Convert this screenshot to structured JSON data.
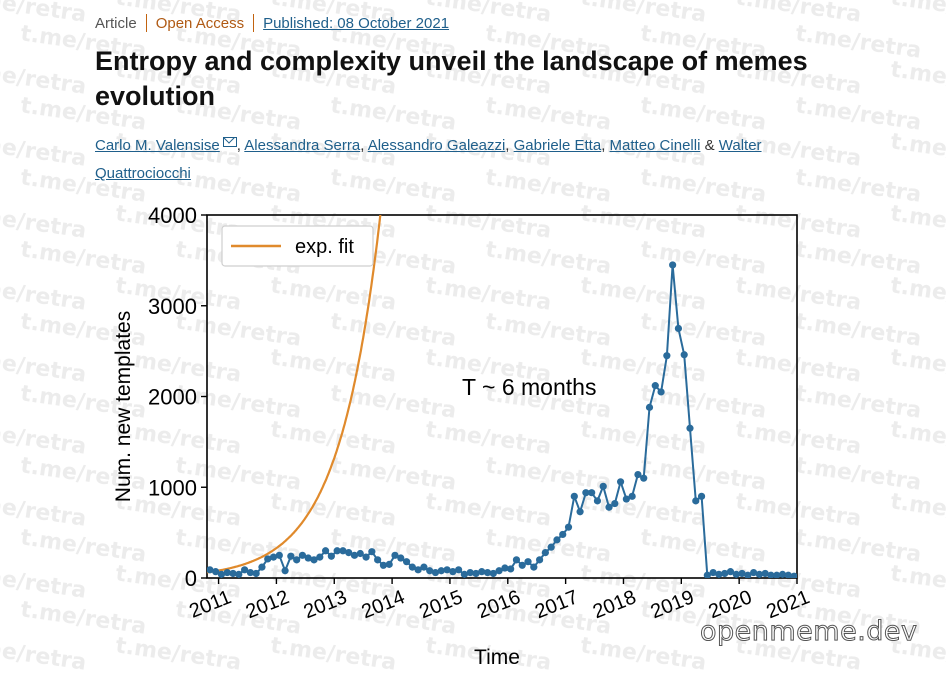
{
  "article": {
    "type": "Article",
    "access": "Open Access",
    "published": "Published: 08 October 2021",
    "title": "Entropy and complexity unveil the landscape of memes evolution",
    "authors": [
      {
        "name": "Carlo M. Valensise",
        "mail": true
      },
      {
        "name": "Alessandra Serra"
      },
      {
        "name": "Alessandro Galeazzi"
      },
      {
        "name": "Gabriele Etta"
      },
      {
        "name": "Matteo Cinelli"
      },
      {
        "name": "Walter Quattrociocchi"
      }
    ],
    "author_separator": ", ",
    "author_last_separator": " & "
  },
  "watermark": {
    "text": "t.me/retra"
  },
  "site_mark": {
    "text": "openmeme.dev"
  },
  "chart_data": {
    "type": "line",
    "xlabel": "Time",
    "ylabel": "Num. new templates",
    "annotation": "T ~ 6 months",
    "legend_position": "top-left",
    "xlim": [
      2010.8,
      2021.0
    ],
    "ylim": [
      0,
      4000
    ],
    "xticks": [
      "2011",
      "2012",
      "2013",
      "2014",
      "2015",
      "2016",
      "2017",
      "2018",
      "2019",
      "2020",
      "2021"
    ],
    "yticks": [
      "0",
      "1000",
      "2000",
      "3000",
      "4000"
    ],
    "colors": {
      "data": "#2a6b9b",
      "fit": "#e08a2c"
    },
    "series": [
      {
        "name": "",
        "kind": "data",
        "x": [
          2010.85,
          2010.95,
          2011.05,
          2011.15,
          2011.25,
          2011.35,
          2011.45,
          2011.55,
          2011.65,
          2011.75,
          2011.85,
          2011.95,
          2012.05,
          2012.15,
          2012.25,
          2012.35,
          2012.45,
          2012.55,
          2012.65,
          2012.75,
          2012.85,
          2012.95,
          2013.05,
          2013.15,
          2013.25,
          2013.35,
          2013.45,
          2013.55,
          2013.65,
          2013.75,
          2013.85,
          2013.95,
          2014.05,
          2014.15,
          2014.25,
          2014.35,
          2014.45,
          2014.55,
          2014.65,
          2014.75,
          2014.85,
          2014.95,
          2015.05,
          2015.15,
          2015.25,
          2015.35,
          2015.45,
          2015.55,
          2015.65,
          2015.75,
          2015.85,
          2015.95,
          2016.05,
          2016.15,
          2016.25,
          2016.35,
          2016.45,
          2016.55,
          2016.65,
          2016.75,
          2016.85,
          2016.95,
          2017.05,
          2017.15,
          2017.25,
          2017.35,
          2017.45,
          2017.55,
          2017.65,
          2017.75,
          2017.85,
          2017.95,
          2018.05,
          2018.15,
          2018.25,
          2018.35,
          2018.45,
          2018.55,
          2018.65,
          2018.75,
          2018.85,
          2018.95,
          2019.05,
          2019.15,
          2019.25,
          2019.35,
          2019.45,
          2019.55,
          2019.65,
          2019.75,
          2019.85,
          2019.95,
          2020.05,
          2020.15,
          2020.25,
          2020.35,
          2020.45,
          2020.55,
          2020.65,
          2020.75,
          2020.85,
          2020.95
        ],
        "values": [
          90,
          70,
          40,
          60,
          50,
          40,
          90,
          60,
          50,
          120,
          210,
          230,
          250,
          80,
          240,
          200,
          250,
          220,
          200,
          230,
          300,
          240,
          300,
          300,
          280,
          250,
          270,
          230,
          290,
          200,
          140,
          150,
          250,
          220,
          180,
          120,
          90,
          120,
          80,
          60,
          80,
          90,
          70,
          90,
          40,
          60,
          50,
          70,
          60,
          50,
          80,
          110,
          100,
          200,
          140,
          180,
          120,
          200,
          280,
          340,
          420,
          480,
          560,
          900,
          730,
          940,
          940,
          850,
          1010,
          780,
          820,
          1060,
          870,
          900,
          1140,
          1100,
          1880,
          2120,
          2050,
          2450,
          3450,
          2750,
          2460,
          1650,
          850,
          900,
          30,
          60,
          40,
          50,
          70,
          40,
          50,
          30,
          60,
          40,
          50,
          30,
          30,
          40,
          30,
          20
        ]
      },
      {
        "name": "exp. fit",
        "kind": "fit",
        "formula": "y = 82 * exp(1.39 * (x - 2011))"
      }
    ]
  }
}
